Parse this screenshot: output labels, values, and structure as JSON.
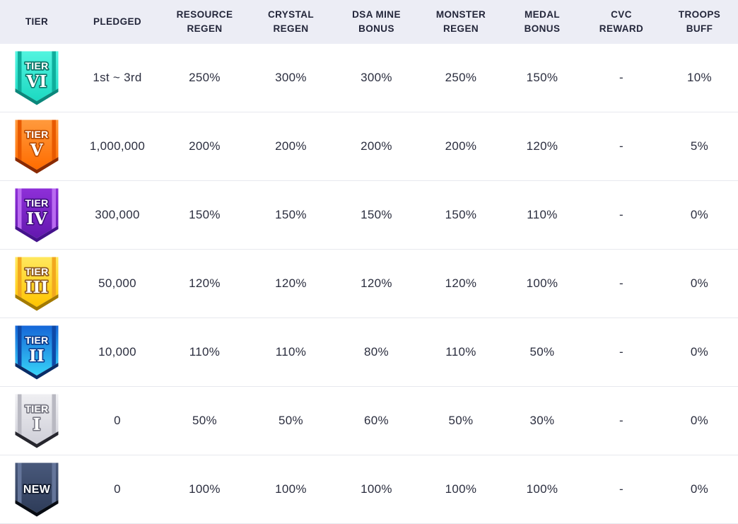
{
  "theme": {
    "header_bg": "#ECEDF5",
    "row_bg": "#FFFFFF",
    "row_border": "#E7E8EE",
    "text_color": "#23263A"
  },
  "table": {
    "columns": [
      {
        "key": "tier",
        "label": "TIER"
      },
      {
        "key": "pledged",
        "label": "PLEDGED"
      },
      {
        "key": "resource_regen",
        "label": "RESOURCE\nREGEN"
      },
      {
        "key": "crystal_regen",
        "label": "CRYSTAL\nREGEN"
      },
      {
        "key": "dsa_mine_bonus",
        "label": "DSA MINE\nBONUS"
      },
      {
        "key": "monster_regen",
        "label": "MONSTER\nREGEN"
      },
      {
        "key": "medal_bonus",
        "label": "MEDAL\nBONUS"
      },
      {
        "key": "cvc_reward",
        "label": "CVC\nREWARD"
      },
      {
        "key": "troops_buff",
        "label": "TROOPS\nBUFF"
      }
    ]
  },
  "rows": [
    {
      "badge": {
        "id": "tier-6",
        "label": "TIER",
        "numeral": "VI",
        "top": "#52F4DF",
        "bottom": "#1CD9C2",
        "stripe": "#0FAE9C",
        "lip": "#0B877B",
        "outline": "#0C7568"
      },
      "pledged": "1st ~ 3rd",
      "resource_regen": "250%",
      "crystal_regen": "300%",
      "dsa_mine_bonus": "300%",
      "monster_regen": "250%",
      "medal_bonus": "150%",
      "cvc_reward": "-",
      "troops_buff": "10%"
    },
    {
      "badge": {
        "id": "tier-5",
        "label": "TIER",
        "numeral": "V",
        "top": "#FF9A3D",
        "bottom": "#FF6C00",
        "stripe": "#E85A00",
        "lip": "#8A2A00",
        "outline": "#B84A00"
      },
      "pledged": "1,000,000",
      "resource_regen": "200%",
      "crystal_regen": "200%",
      "dsa_mine_bonus": "200%",
      "monster_regen": "200%",
      "medal_bonus": "120%",
      "cvc_reward": "-",
      "troops_buff": "5%"
    },
    {
      "badge": {
        "id": "tier-4",
        "label": "TIER",
        "numeral": "IV",
        "top": "#8E2FD8",
        "bottom": "#6318AF",
        "stripe": "#B96BF0",
        "lip": "#45128C",
        "outline": "#3F0E7E"
      },
      "pledged": "300,000",
      "resource_regen": "150%",
      "crystal_regen": "150%",
      "dsa_mine_bonus": "150%",
      "monster_regen": "150%",
      "medal_bonus": "110%",
      "cvc_reward": "-",
      "troops_buff": "0%"
    },
    {
      "badge": {
        "id": "tier-3",
        "label": "TIER",
        "numeral": "III",
        "top": "#FFE85E",
        "bottom": "#FFC400",
        "stripe": "#F2A81E",
        "lip": "#A37A00",
        "outline": "#8F5B1E"
      },
      "pledged": "50,000",
      "resource_regen": "120%",
      "crystal_regen": "120%",
      "dsa_mine_bonus": "120%",
      "monster_regen": "120%",
      "medal_bonus": "100%",
      "cvc_reward": "-",
      "troops_buff": "0%"
    },
    {
      "badge": {
        "id": "tier-2",
        "label": "TIER",
        "numeral": "II",
        "top": "#1566D8",
        "bottom": "#37D3F8",
        "stripe": "#0E4AA8",
        "lip": "#0A2C66",
        "outline": "#0D3E8F"
      },
      "pledged": "10,000",
      "resource_regen": "110%",
      "crystal_regen": "110%",
      "dsa_mine_bonus": "80%",
      "monster_regen": "110%",
      "medal_bonus": "50%",
      "cvc_reward": "-",
      "troops_buff": "0%"
    },
    {
      "badge": {
        "id": "tier-1",
        "label": "TIER",
        "numeral": "I",
        "top": "#EFEFF2",
        "bottom": "#CFCFD8",
        "stripe": "#B9B9C2",
        "lip": "#26262E",
        "outline": "#7A7A85"
      },
      "pledged": "0",
      "resource_regen": "50%",
      "crystal_regen": "50%",
      "dsa_mine_bonus": "60%",
      "monster_regen": "50%",
      "medal_bonus": "30%",
      "cvc_reward": "-",
      "troops_buff": "0%"
    },
    {
      "badge": {
        "id": "tier-new",
        "label": null,
        "numeral": "NEW",
        "top": "#49597B",
        "bottom": "#2E3C59",
        "stripe": "#64759A",
        "lip": "#070B12",
        "outline": "#141E33"
      },
      "pledged": "0",
      "resource_regen": "100%",
      "crystal_regen": "100%",
      "dsa_mine_bonus": "100%",
      "monster_regen": "100%",
      "medal_bonus": "100%",
      "cvc_reward": "-",
      "troops_buff": "0%"
    }
  ]
}
